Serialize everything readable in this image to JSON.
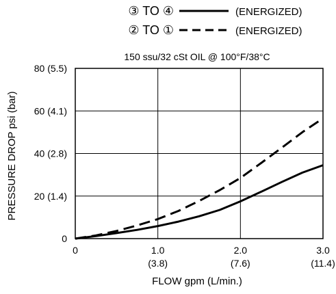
{
  "chart_data": {
    "type": "line",
    "legend_placement": "top-center",
    "subtitle": "150 ssu/32 cSt OIL @ 100°F/38°C",
    "xlabel": "FLOW  gpm (L/min.)",
    "ylabel": "PRESSURE DROP psi (bar)",
    "xlim": [
      0,
      3
    ],
    "ylim": [
      0,
      80
    ],
    "grid": true,
    "x_ticks": [
      {
        "value": 0,
        "label": "0",
        "sub": ""
      },
      {
        "value": 1,
        "label": "1.0",
        "sub": "(3.8)"
      },
      {
        "value": 2,
        "label": "2.0",
        "sub": "(7.6)"
      },
      {
        "value": 3,
        "label": "3.0",
        "sub": "(11.4)"
      }
    ],
    "y_ticks": [
      {
        "value": 0,
        "label": "0"
      },
      {
        "value": 20,
        "label": "20 (1.4)"
      },
      {
        "value": 40,
        "label": "40 (2.8)"
      },
      {
        "value": 60,
        "label": "60 (4.1)"
      },
      {
        "value": 80,
        "label": "80 (5.5)"
      }
    ],
    "series": [
      {
        "name": "③ TO ④ (ENERGIZED)",
        "legend_from": "③ TO ④",
        "legend_suffix": "(ENERGIZED)",
        "style": "solid",
        "color": "#000000",
        "x": [
          0,
          0.25,
          0.5,
          0.75,
          1.0,
          1.25,
          1.5,
          1.75,
          2.0,
          2.25,
          2.5,
          2.75,
          3.0
        ],
        "y": [
          0,
          1.2,
          2.6,
          4.1,
          5.9,
          8.0,
          10.5,
          13.5,
          17.5,
          22.0,
          26.6,
          31.0,
          34.5
        ]
      },
      {
        "name": "② TO ① (ENERGIZED)",
        "legend_from": "② TO ①",
        "legend_suffix": "(ENERGIZED)",
        "style": "dashed",
        "color": "#000000",
        "x": [
          0,
          0.25,
          0.5,
          0.75,
          1.0,
          1.25,
          1.5,
          1.75,
          2.0,
          2.25,
          2.5,
          2.75,
          3.0
        ],
        "y": [
          0,
          1.5,
          3.6,
          6.2,
          9.2,
          13.0,
          17.7,
          22.8,
          28.5,
          35.5,
          42.7,
          50.0,
          56.5
        ]
      }
    ]
  }
}
